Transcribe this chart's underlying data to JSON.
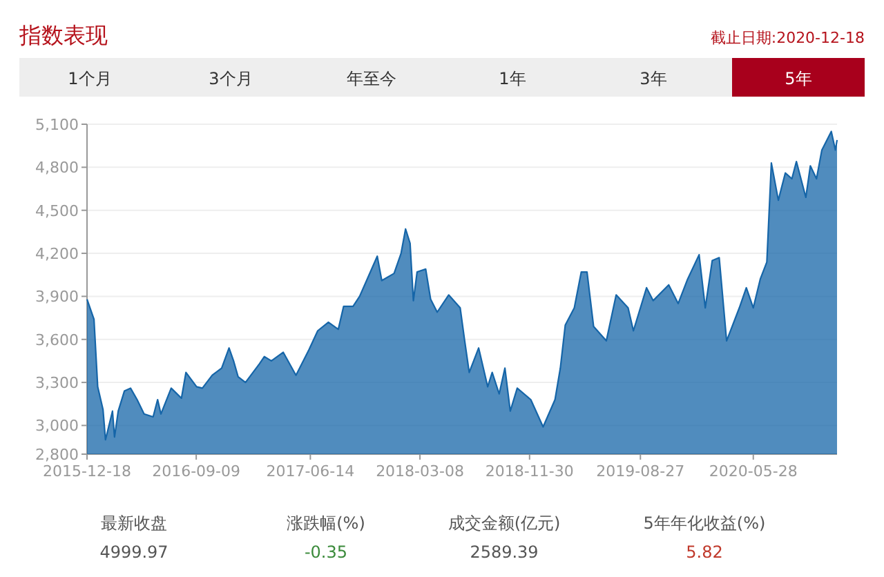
{
  "chart_data": {
    "type": "area",
    "title": "指数表现",
    "subtitle": "截止日期:2020-12-18",
    "annotations": [
      "1个月",
      "3个月",
      "年至今",
      "1年",
      "3年",
      "5年",
      "最新收盘",
      "4999.97",
      "涨跌幅(%)",
      "-0.35",
      "成交金额(亿元)",
      "2589.39",
      "5年年化收益(%)",
      "5.82"
    ],
    "xlim": [
      "2015-12-18",
      "2020-12-18"
    ],
    "xticks": [
      "2015-12-18",
      "2016-09-09",
      "2017-06-14",
      "2018-03-08",
      "2018-11-30",
      "2019-08-27",
      "2020-05-28"
    ],
    "ylim": [
      2800,
      5100
    ],
    "yticks": [
      {
        "value": 2800,
        "label": "2,800"
      },
      {
        "value": 3000,
        "label": "3,000"
      },
      {
        "value": 3300,
        "label": "3,300"
      },
      {
        "value": 3600,
        "label": "3,600"
      },
      {
        "value": 3900,
        "label": "3,900"
      },
      {
        "value": 4200,
        "label": "4,200"
      },
      {
        "value": 4500,
        "label": "4,500"
      },
      {
        "value": 4800,
        "label": "4,800"
      },
      {
        "value": 5100,
        "label": "5,100"
      }
    ],
    "grid": "y",
    "marker": "none",
    "line_style": "solid",
    "series": [
      {
        "color": "#1565a8",
        "x": [
          "2015-12-18",
          "2016-01-04",
          "2016-01-13",
          "2016-01-26",
          "2016-02-01",
          "2016-02-18",
          "2016-02-23",
          "2016-03-03",
          "2016-03-18",
          "2016-04-02",
          "2016-04-18",
          "2016-05-05",
          "2016-05-27",
          "2016-06-07",
          "2016-06-15",
          "2016-07-10",
          "2016-08-04",
          "2016-08-15",
          "2016-09-10",
          "2016-09-24",
          "2016-10-18",
          "2016-11-10",
          "2016-11-28",
          "2016-12-09",
          "2016-12-20",
          "2017-01-07",
          "2017-02-10",
          "2017-02-22",
          "2017-03-11",
          "2017-04-09",
          "2017-05-10",
          "2017-06-11",
          "2017-07-02",
          "2017-07-28",
          "2017-08-21",
          "2017-09-03",
          "2017-09-26",
          "2017-10-12",
          "2017-10-29",
          "2017-11-24",
          "2017-12-05",
          "2018-01-04",
          "2018-01-21",
          "2018-02-01",
          "2018-02-12",
          "2018-02-20",
          "2018-03-01",
          "2018-03-22",
          "2018-04-03",
          "2018-04-19",
          "2018-05-17",
          "2018-06-14",
          "2018-06-25",
          "2018-07-06",
          "2018-07-29",
          "2018-08-20",
          "2018-08-31",
          "2018-09-17",
          "2018-10-01",
          "2018-10-14",
          "2018-10-31",
          "2018-12-03",
          "2019-01-02",
          "2019-01-31",
          "2019-02-13",
          "2019-02-25",
          "2019-03-19",
          "2019-04-05",
          "2019-04-19",
          "2019-05-05",
          "2019-06-05",
          "2019-06-29",
          "2019-07-28",
          "2019-08-10",
          "2019-09-11",
          "2019-09-27",
          "2019-11-04",
          "2019-11-27",
          "2019-12-20",
          "2020-01-17",
          "2020-02-01",
          "2020-02-18",
          "2020-03-06",
          "2020-03-24",
          "2020-04-24",
          "2020-05-11",
          "2020-05-28",
          "2020-06-14",
          "2020-06-30",
          "2020-07-11",
          "2020-07-28",
          "2020-08-14",
          "2020-08-30",
          "2020-09-10",
          "2020-10-03",
          "2020-10-14",
          "2020-10-29",
          "2020-11-11",
          "2020-12-04",
          "2020-12-14",
          "2020-12-18"
        ],
        "values": [
          3880,
          3740,
          3270,
          3110,
          2900,
          3100,
          2920,
          3100,
          3240,
          3260,
          3180,
          3080,
          3060,
          3180,
          3080,
          3260,
          3190,
          3370,
          3270,
          3260,
          3350,
          3400,
          3540,
          3450,
          3340,
          3300,
          3430,
          3480,
          3450,
          3510,
          3350,
          3530,
          3660,
          3720,
          3670,
          3830,
          3830,
          3900,
          4010,
          4180,
          4010,
          4060,
          4200,
          4370,
          4270,
          3870,
          4070,
          4090,
          3880,
          3790,
          3910,
          3820,
          3590,
          3370,
          3540,
          3270,
          3370,
          3220,
          3400,
          3100,
          3260,
          3180,
          2990,
          3180,
          3400,
          3700,
          3820,
          4070,
          4070,
          3690,
          3590,
          3910,
          3820,
          3660,
          3960,
          3870,
          3980,
          3850,
          4020,
          4190,
          3820,
          4150,
          4170,
          3590,
          3820,
          3960,
          3820,
          4020,
          4140,
          4830,
          4570,
          4760,
          4720,
          4840,
          4590,
          4810,
          4720,
          4920,
          5050,
          4920,
          4990
        ]
      }
    ]
  }
}
